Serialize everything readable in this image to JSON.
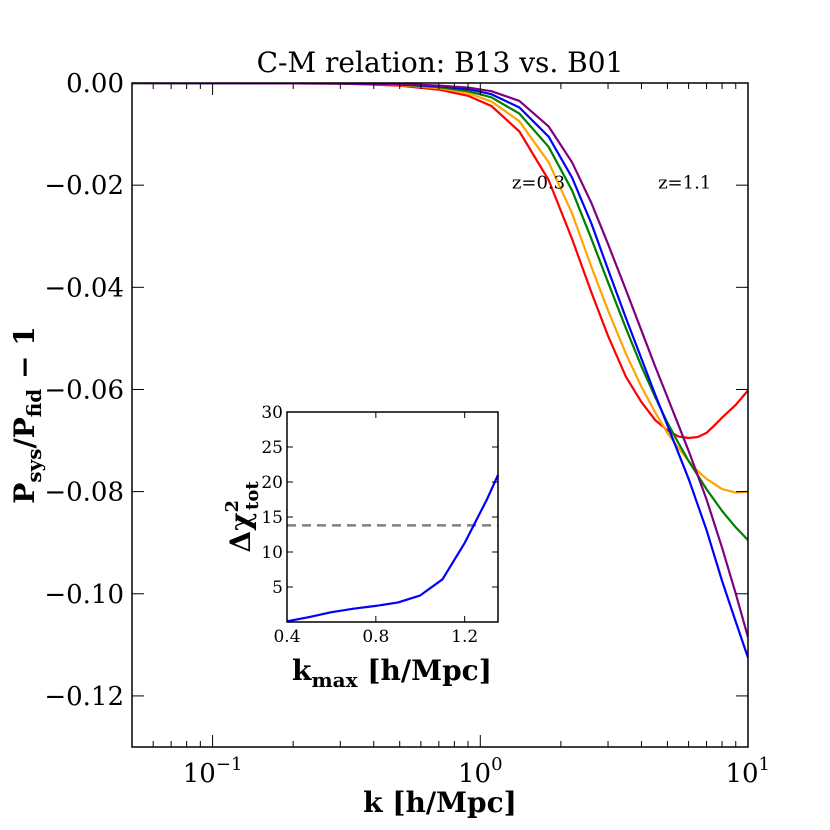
{
  "chart_data": [
    {
      "type": "line",
      "title": "C-M relation: B13 vs. B01",
      "xlabel": "k [h/Mpc]",
      "ylabel_main": "P",
      "ylabel_sub1": "sys",
      "ylabel_slash": "/P",
      "ylabel_sub2": "fid",
      "ylabel_tail": " − 1",
      "xscale": "log",
      "xlim": [
        0.05,
        10
      ],
      "ylim": [
        -0.13,
        0.0
      ],
      "x_ticks": [
        {
          "value": 0.1,
          "base": "10",
          "exp": "−1"
        },
        {
          "value": 1,
          "base": "10",
          "exp": "0"
        },
        {
          "value": 10,
          "base": "10",
          "exp": "1"
        }
      ],
      "y_ticks": [
        {
          "value": 0.0,
          "label": "0.00"
        },
        {
          "value": -0.02,
          "label": "−0.02"
        },
        {
          "value": -0.04,
          "label": "−0.04"
        },
        {
          "value": -0.06,
          "label": "−0.06"
        },
        {
          "value": -0.08,
          "label": "−0.08"
        },
        {
          "value": -0.1,
          "label": "−0.10"
        },
        {
          "value": -0.12,
          "label": "−0.12"
        }
      ],
      "annotations": [
        {
          "text": "z=0.3",
          "x": 1.65,
          "y": -0.0195
        },
        {
          "text": "z=1.1",
          "x": 5.8,
          "y": -0.0195
        }
      ],
      "series": [
        {
          "name": "red",
          "color": "#ff0000",
          "x": [
            0.05,
            0.3,
            0.5,
            0.7,
            0.9,
            1.1,
            1.4,
            1.8,
            2.2,
            2.6,
            3.0,
            3.5,
            4.0,
            4.5,
            5.0,
            5.5,
            6.0,
            6.5,
            7.0,
            7.5,
            8.0,
            9.0,
            10.0
          ],
          "y": [
            0.0,
            -0.0001,
            -0.0005,
            -0.0013,
            -0.0025,
            -0.0045,
            -0.0095,
            -0.019,
            -0.0305,
            -0.041,
            -0.0495,
            -0.0575,
            -0.0625,
            -0.066,
            -0.068,
            -0.0692,
            -0.0695,
            -0.0693,
            -0.0685,
            -0.067,
            -0.0655,
            -0.063,
            -0.0602
          ]
        },
        {
          "name": "orange",
          "color": "#ffa500",
          "x": [
            0.05,
            0.3,
            0.5,
            0.7,
            0.9,
            1.1,
            1.4,
            1.8,
            2.2,
            2.6,
            3.0,
            3.5,
            4.0,
            4.5,
            5.0,
            5.5,
            6.0,
            6.5,
            7.0,
            8.0,
            9.0,
            10.0
          ],
          "y": [
            0.0,
            -0.0001,
            -0.0004,
            -0.001,
            -0.002,
            -0.0036,
            -0.0075,
            -0.0155,
            -0.0255,
            -0.036,
            -0.0445,
            -0.053,
            -0.0595,
            -0.0645,
            -0.0685,
            -0.0715,
            -0.074,
            -0.076,
            -0.0775,
            -0.0795,
            -0.0802,
            -0.08
          ]
        },
        {
          "name": "green",
          "color": "#008000",
          "x": [
            0.05,
            0.3,
            0.5,
            0.7,
            0.9,
            1.1,
            1.4,
            1.8,
            2.2,
            2.6,
            3.0,
            3.5,
            4.0,
            4.5,
            5.0,
            5.5,
            6.0,
            7.0,
            8.0,
            9.0,
            10.0
          ],
          "y": [
            0.0,
            -0.0001,
            -0.0003,
            -0.0008,
            -0.0016,
            -0.0028,
            -0.006,
            -0.0125,
            -0.021,
            -0.0305,
            -0.039,
            -0.048,
            -0.0555,
            -0.0615,
            -0.0665,
            -0.0705,
            -0.074,
            -0.0795,
            -0.0838,
            -0.087,
            -0.0895
          ]
        },
        {
          "name": "blue",
          "color": "#0000ff",
          "x": [
            0.05,
            0.3,
            0.5,
            0.7,
            0.9,
            1.1,
            1.4,
            1.8,
            2.2,
            2.6,
            3.0,
            3.5,
            4.0,
            4.5,
            5.0,
            5.5,
            6.0,
            7.0,
            8.0,
            9.0,
            10.0
          ],
          "y": [
            0.0,
            -0.0001,
            -0.0003,
            -0.0006,
            -0.0012,
            -0.0022,
            -0.0048,
            -0.0105,
            -0.0185,
            -0.0275,
            -0.0365,
            -0.046,
            -0.054,
            -0.061,
            -0.067,
            -0.0725,
            -0.0775,
            -0.0875,
            -0.0975,
            -0.1055,
            -0.1125
          ]
        },
        {
          "name": "purple",
          "color": "#800080",
          "x": [
            0.05,
            0.3,
            0.5,
            0.7,
            0.9,
            1.1,
            1.4,
            1.8,
            2.2,
            2.6,
            3.0,
            3.5,
            4.0,
            4.5,
            5.0,
            5.5,
            6.0,
            7.0,
            8.0,
            9.0,
            10.0
          ],
          "y": [
            0.0,
            -0.0001,
            -0.0002,
            -0.0005,
            -0.0009,
            -0.0016,
            -0.0035,
            -0.0085,
            -0.0155,
            -0.0235,
            -0.0315,
            -0.0405,
            -0.0485,
            -0.0555,
            -0.0615,
            -0.067,
            -0.072,
            -0.0815,
            -0.091,
            -0.1,
            -0.1085
          ]
        }
      ]
    },
    {
      "type": "line",
      "xlabel_main": "k",
      "xlabel_sub": "max",
      "xlabel_tail": " [h/Mpc]",
      "ylabel_delta": "Δχ",
      "ylabel_sup": "2",
      "ylabel_sub": "tot",
      "xlim": [
        0.4,
        1.35
      ],
      "ylim": [
        0,
        30
      ],
      "x_ticks": [
        {
          "value": 0.4,
          "label": "0.4"
        },
        {
          "value": 0.8,
          "label": "0.8"
        },
        {
          "value": 1.2,
          "label": "1.2"
        }
      ],
      "y_ticks": [
        {
          "value": 5,
          "label": "5"
        },
        {
          "value": 10,
          "label": "10"
        },
        {
          "value": 15,
          "label": "15"
        },
        {
          "value": 20,
          "label": "20"
        },
        {
          "value": 25,
          "label": "25"
        },
        {
          "value": 30,
          "label": "30"
        }
      ],
      "threshold": {
        "value": 13.8,
        "color": "#808080",
        "style": "dashed"
      },
      "series": [
        {
          "name": "delta-chi2",
          "color": "#0000ff",
          "x": [
            0.4,
            0.5,
            0.6,
            0.7,
            0.8,
            0.9,
            1.0,
            1.1,
            1.2,
            1.3,
            1.35
          ],
          "y": [
            0.1,
            0.7,
            1.4,
            1.9,
            2.3,
            2.8,
            3.8,
            6.1,
            11.3,
            17.5,
            21.0
          ]
        }
      ]
    }
  ]
}
